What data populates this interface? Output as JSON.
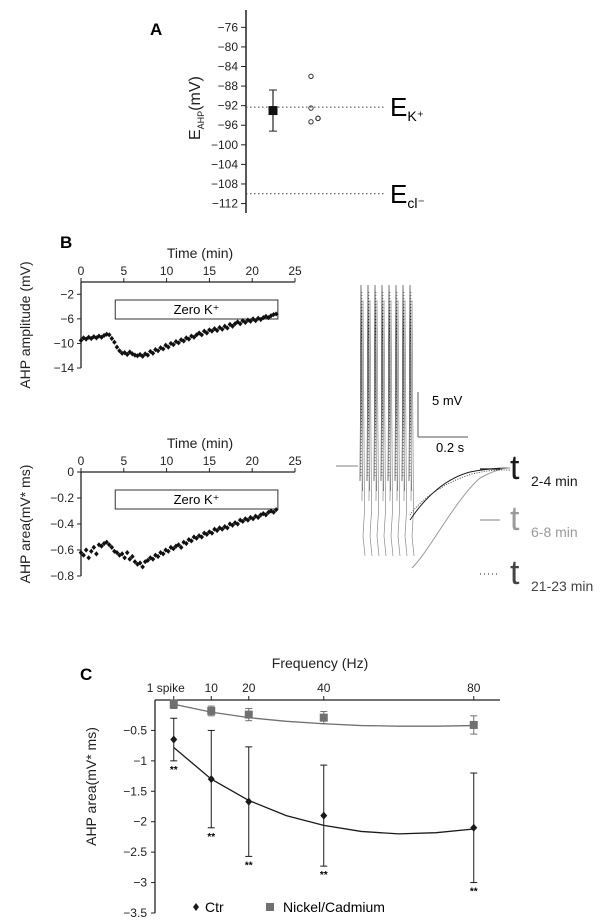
{
  "panel_labels": {
    "a": "A",
    "b": "B",
    "c": "C"
  },
  "chart_data": [
    {
      "panel": "A",
      "type": "scatter",
      "ylabel_main": "E",
      "ylabel_sub": "AHP",
      "ylabel_unit": "(mV)",
      "yticks": [
        -76,
        -80,
        -84,
        -88,
        -92,
        -96,
        -100,
        -104,
        -108,
        -112
      ],
      "ytick_labels": [
        "−76",
        "−80",
        "−84",
        "−88",
        "−92",
        "−96",
        "−100",
        "−104",
        "−108",
        "−112"
      ],
      "ylim": [
        -112.5,
        -74.5
      ],
      "mean": {
        "y": -93,
        "err_low": -97.2,
        "err_high": -88.8
      },
      "points": [
        -86,
        -92.5,
        -95.3,
        -94.6,
        -94.6
      ],
      "reference_lines": [
        {
          "y": -92.3,
          "label_main": "E",
          "label_sub": "K⁺"
        },
        {
          "y": -110,
          "label_main": "E",
          "label_sub": "cl⁻"
        }
      ]
    },
    {
      "panel": "B-top",
      "type": "scatter",
      "xlabel": "Time (min)",
      "ylabel": "AHP amplitude (mV)",
      "xticks": [
        0,
        5,
        10,
        15,
        20,
        25
      ],
      "yticks": [
        -2,
        -6,
        -10,
        -14
      ],
      "ytick_labels": [
        "−2",
        "−6",
        "−10",
        "−14"
      ],
      "xlim": [
        0,
        25
      ],
      "ylim": [
        -14,
        0
      ],
      "annotation_box": {
        "label": "Zero  K⁺",
        "x_start": 4,
        "x_end": 23
      },
      "series": [
        {
          "x": [
            0.0,
            0.3,
            0.6,
            0.9,
            1.2,
            1.5,
            1.8,
            2.1,
            2.4,
            2.7,
            3.0,
            3.3,
            3.6,
            3.9,
            4.2,
            4.5,
            4.8,
            5.1,
            5.4,
            5.7,
            6.0,
            6.3,
            6.6,
            6.9,
            7.2,
            7.5,
            7.8,
            8.1,
            8.4,
            8.7,
            9.0,
            9.3,
            9.6,
            9.9,
            10.2,
            10.5,
            10.8,
            11.1,
            11.4,
            11.7,
            12.0,
            12.3,
            12.6,
            12.9,
            13.2,
            13.5,
            13.8,
            14.1,
            14.4,
            14.7,
            15.0,
            15.3,
            15.6,
            15.9,
            16.2,
            16.5,
            16.8,
            17.1,
            17.4,
            17.7,
            18.0,
            18.3,
            18.6,
            18.9,
            19.2,
            19.5,
            19.8,
            20.1,
            20.4,
            20.7,
            21.0,
            21.3,
            21.6,
            21.9,
            22.2,
            22.5,
            22.8
          ],
          "y": [
            -9.5,
            -9.1,
            -9.3,
            -9.0,
            -9.2,
            -8.9,
            -9.1,
            -8.8,
            -9.0,
            -8.7,
            -8.5,
            -8.6,
            -9.2,
            -9.8,
            -10.6,
            -11.2,
            -11.6,
            -11.5,
            -11.8,
            -11.4,
            -11.7,
            -11.9,
            -12.0,
            -11.8,
            -12.1,
            -11.7,
            -11.9,
            -11.3,
            -11.6,
            -11.0,
            -11.2,
            -10.7,
            -10.9,
            -10.3,
            -10.6,
            -10.0,
            -10.2,
            -9.7,
            -9.9,
            -9.4,
            -9.6,
            -9.1,
            -9.3,
            -8.8,
            -9.0,
            -8.6,
            -8.3,
            -8.6,
            -8.0,
            -8.3,
            -7.8,
            -8.0,
            -7.6,
            -7.9,
            -7.4,
            -7.7,
            -7.2,
            -7.5,
            -6.9,
            -7.2,
            -6.8,
            -6.5,
            -6.8,
            -6.3,
            -6.6,
            -6.2,
            -6.4,
            -6.0,
            -6.3,
            -5.9,
            -6.1,
            -5.8,
            -5.6,
            -5.8,
            -5.5,
            -5.3,
            -5.2
          ]
        }
      ]
    },
    {
      "panel": "B-bottom",
      "type": "scatter",
      "xlabel": "Time (min)",
      "ylabel": "AHP area(mV* ms)",
      "xticks": [
        0,
        5,
        10,
        15,
        20,
        25
      ],
      "yticks": [
        0,
        -0.2,
        -0.4,
        -0.6,
        -0.8
      ],
      "ytick_labels": [
        "0",
        "−0.2",
        "−0.4",
        "−0.6",
        "−0.8"
      ],
      "xlim": [
        0,
        25
      ],
      "ylim": [
        -0.8,
        0
      ],
      "annotation_box": {
        "label": "Zero  K⁺",
        "x_start": 4,
        "x_end": 23
      },
      "series": [
        {
          "x": [
            0.0,
            0.3,
            0.6,
            0.9,
            1.2,
            1.5,
            1.8,
            2.1,
            2.4,
            2.7,
            3.0,
            3.3,
            3.6,
            3.9,
            4.2,
            4.5,
            4.8,
            5.1,
            5.4,
            5.7,
            6.0,
            6.3,
            6.6,
            6.9,
            7.2,
            7.5,
            7.8,
            8.1,
            8.4,
            8.7,
            9.0,
            9.3,
            9.6,
            9.9,
            10.2,
            10.5,
            10.8,
            11.1,
            11.4,
            11.7,
            12.0,
            12.3,
            12.6,
            12.9,
            13.2,
            13.5,
            13.8,
            14.1,
            14.4,
            14.7,
            15.0,
            15.3,
            15.6,
            15.9,
            16.2,
            16.5,
            16.8,
            17.1,
            17.4,
            17.7,
            18.0,
            18.3,
            18.6,
            18.9,
            19.2,
            19.5,
            19.8,
            20.1,
            20.4,
            20.7,
            21.0,
            21.3,
            21.6,
            21.9,
            22.2,
            22.5,
            22.8
          ],
          "y": [
            -0.62,
            -0.64,
            -0.6,
            -0.66,
            -0.61,
            -0.58,
            -0.63,
            -0.56,
            -0.57,
            -0.55,
            -0.54,
            -0.56,
            -0.58,
            -0.61,
            -0.62,
            -0.64,
            -0.63,
            -0.66,
            -0.62,
            -0.67,
            -0.65,
            -0.69,
            -0.71,
            -0.7,
            -0.73,
            -0.69,
            -0.68,
            -0.66,
            -0.67,
            -0.64,
            -0.65,
            -0.62,
            -0.63,
            -0.6,
            -0.61,
            -0.58,
            -0.59,
            -0.57,
            -0.56,
            -0.58,
            -0.54,
            -0.55,
            -0.52,
            -0.53,
            -0.5,
            -0.51,
            -0.49,
            -0.5,
            -0.47,
            -0.48,
            -0.46,
            -0.47,
            -0.44,
            -0.45,
            -0.43,
            -0.44,
            -0.42,
            -0.43,
            -0.4,
            -0.41,
            -0.39,
            -0.4,
            -0.37,
            -0.38,
            -0.36,
            -0.37,
            -0.35,
            -0.36,
            -0.34,
            -0.35,
            -0.33,
            -0.32,
            -0.33,
            -0.31,
            -0.3,
            -0.31,
            -0.29
          ]
        }
      ]
    },
    {
      "panel": "B-traces",
      "type": "line",
      "scalebar": {
        "v_label": "5 mV",
        "h_label": "0.2 s"
      },
      "legend": [
        {
          "glyph": "t",
          "sub": "2-4 min",
          "color": "#1a1a1a",
          "style": "solid"
        },
        {
          "glyph": "t",
          "sub": "6-8 min",
          "color": "#9a9a9a",
          "style": "solid"
        },
        {
          "glyph": "t",
          "sub": "21-23 min",
          "color": "#444444",
          "style": "dotted"
        }
      ]
    },
    {
      "panel": "C",
      "type": "scatter",
      "xlabel": "Frequency (Hz)",
      "ylabel": "AHP area(mV* ms)",
      "xtick_labels": [
        "1 spike",
        "10",
        "20",
        "40",
        "80"
      ],
      "xtick_values": [
        0,
        10,
        20,
        40,
        80
      ],
      "yticks": [
        -0.5,
        -1,
        -1.5,
        -2,
        -2.5,
        -3,
        -3.5
      ],
      "ytick_labels": [
        "−0.5",
        "−1",
        "−1.5",
        "−2",
        "−2.5",
        "−3",
        "−3.5"
      ],
      "xlim": [
        -5,
        87
      ],
      "ylim": [
        -3.5,
        0
      ],
      "significance_label": "**",
      "series": [
        {
          "name": "Ctr",
          "marker": "diamond",
          "color": "#1a1a1a",
          "x": [
            0,
            10,
            20,
            40,
            80
          ],
          "y": [
            -0.65,
            -1.3,
            -1.67,
            -1.9,
            -2.1
          ],
          "err": [
            0.35,
            0.8,
            0.9,
            0.83,
            0.9
          ],
          "fit": [
            [
              0,
              -0.78
            ],
            [
              10,
              -1.3
            ],
            [
              20,
              -1.65
            ],
            [
              30,
              -1.9
            ],
            [
              40,
              -2.06
            ],
            [
              50,
              -2.16
            ],
            [
              60,
              -2.2
            ],
            [
              70,
              -2.18
            ],
            [
              80,
              -2.12
            ]
          ]
        },
        {
          "name": "Nickel/Cadmium",
          "marker": "square",
          "color": "#707070",
          "x": [
            0,
            10,
            20,
            40,
            80
          ],
          "y": [
            -0.07,
            -0.18,
            -0.24,
            -0.29,
            -0.41
          ],
          "err": [
            0.07,
            0.08,
            0.1,
            0.1,
            0.15
          ],
          "fit": [
            [
              0,
              -0.07
            ],
            [
              10,
              -0.2
            ],
            [
              20,
              -0.29
            ],
            [
              30,
              -0.35
            ],
            [
              40,
              -0.39
            ],
            [
              50,
              -0.42
            ],
            [
              60,
              -0.43
            ],
            [
              70,
              -0.43
            ],
            [
              80,
              -0.42
            ]
          ]
        }
      ]
    }
  ]
}
